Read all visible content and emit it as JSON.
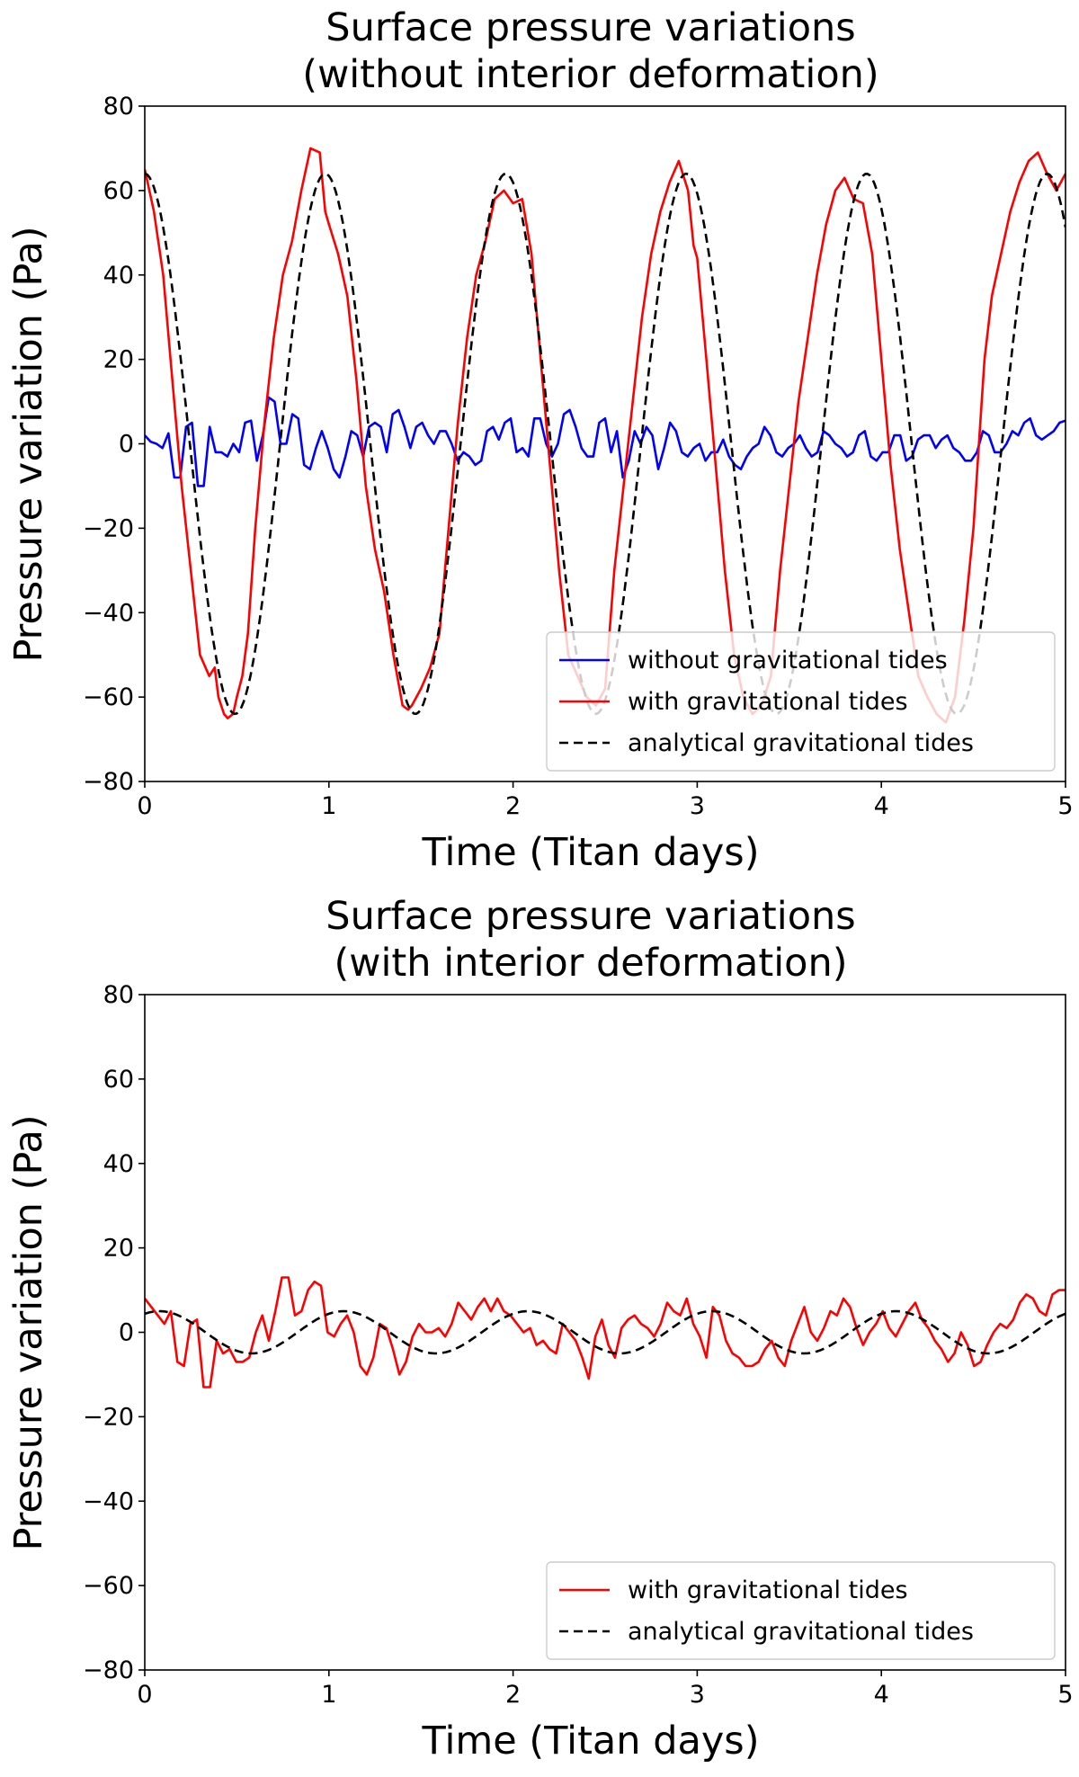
{
  "chart_data": [
    {
      "type": "line",
      "title": [
        "Surface pressure variations",
        "(without interior deformation)"
      ],
      "xlabel": "Time (Titan days)",
      "ylabel": "Pressure variation (Pa)",
      "xlim": [
        0,
        5
      ],
      "ylim": [
        -80,
        80
      ],
      "xticks": [
        0,
        1,
        2,
        3,
        4,
        5
      ],
      "xtick_labels": [
        "0",
        "1",
        "2",
        "3",
        "4",
        "5"
      ],
      "yticks": [
        -80,
        -60,
        -40,
        -20,
        0,
        20,
        40,
        60,
        80
      ],
      "ytick_labels": [
        "−80",
        "−60",
        "−40",
        "−20",
        "0",
        "20",
        "40",
        "60",
        "80"
      ],
      "grid": false,
      "legend_position": "lower-right",
      "series": [
        {
          "name": "without gravitational tides",
          "color": "#0000ff",
          "style": "solid",
          "kind": "sampled",
          "x_start": 0,
          "x_end": 5,
          "values": [
            2,
            0.5,
            0,
            -1,
            2.5,
            -8,
            -8,
            4,
            5,
            -10,
            -10,
            4,
            -2,
            -2,
            -3,
            0,
            -2,
            5,
            5.5,
            -4,
            2,
            11,
            10,
            0,
            0,
            7,
            6,
            -5,
            -6,
            -1,
            3,
            -1,
            -6,
            -8,
            -3,
            3,
            2,
            -3,
            4,
            5,
            4,
            -2,
            7,
            8,
            4,
            -1,
            4,
            5,
            2,
            0,
            3,
            3,
            0,
            -4,
            -2,
            -3,
            -5,
            -4,
            3,
            4,
            1,
            5,
            6,
            -2,
            -1,
            -3,
            6,
            6,
            0,
            -3,
            0,
            7,
            8,
            4,
            -1,
            -3,
            -3,
            5,
            6,
            -2,
            3,
            -8,
            -4,
            3,
            0,
            4,
            2,
            -6,
            -1,
            5,
            3,
            -2,
            -3,
            -1,
            0,
            -4,
            -2,
            -2,
            1,
            -3,
            -5,
            -6,
            -3,
            -1,
            0,
            4,
            2,
            -2,
            -3,
            -1,
            0,
            2,
            -1,
            -3,
            -2,
            3,
            2,
            0,
            -1,
            -3,
            -2,
            2,
            3,
            -3,
            -4,
            -2,
            -2,
            2,
            2,
            -4,
            -3,
            1,
            2,
            2,
            -1,
            1,
            2,
            -1,
            -2,
            -4,
            -4,
            -2,
            3,
            2,
            -2,
            -2,
            0,
            3,
            2,
            5,
            6,
            2,
            1,
            2,
            3,
            5,
            5.5
          ]
        },
        {
          "name": "with gravitational tides",
          "color": "#ff0000",
          "style": "solid",
          "kind": "points",
          "x": [
            0,
            0.05,
            0.1,
            0.15,
            0.2,
            0.25,
            0.3,
            0.35,
            0.38,
            0.4,
            0.43,
            0.45,
            0.48,
            0.5,
            0.53,
            0.56,
            0.6,
            0.65,
            0.7,
            0.75,
            0.8,
            0.85,
            0.9,
            0.95,
            0.98,
            1.0,
            1.05,
            1.1,
            1.15,
            1.2,
            1.25,
            1.3,
            1.35,
            1.4,
            1.43,
            1.45,
            1.5,
            1.55,
            1.6,
            1.65,
            1.7,
            1.75,
            1.8,
            1.85,
            1.9,
            1.95,
            2.0,
            2.05,
            2.1,
            2.15,
            2.2,
            2.25,
            2.3,
            2.35,
            2.4,
            2.45,
            2.5,
            2.55,
            2.6,
            2.65,
            2.7,
            2.75,
            2.8,
            2.85,
            2.9,
            2.95,
            2.98,
            3.0,
            3.05,
            3.1,
            3.15,
            3.2,
            3.25,
            3.3,
            3.35,
            3.4,
            3.45,
            3.5,
            3.55,
            3.6,
            3.65,
            3.7,
            3.75,
            3.8,
            3.85,
            3.9,
            3.95,
            4.0,
            4.05,
            4.1,
            4.15,
            4.2,
            4.25,
            4.3,
            4.35,
            4.4,
            4.45,
            4.5,
            4.53,
            4.56,
            4.6,
            4.65,
            4.7,
            4.75,
            4.8,
            4.85,
            4.9,
            4.95,
            5.0
          ],
          "y": [
            65,
            55,
            40,
            15,
            -10,
            -30,
            -50,
            -55,
            -53,
            -60,
            -64,
            -65,
            -64,
            -60,
            -55,
            -45,
            -20,
            5,
            25,
            40,
            48,
            60,
            70,
            69,
            55,
            52,
            45,
            35,
            15,
            -10,
            -25,
            -35,
            -50,
            -62,
            -63,
            -62,
            -58,
            -53,
            -45,
            -20,
            5,
            25,
            40,
            48,
            58,
            60,
            57,
            58,
            45,
            20,
            -5,
            -30,
            -50,
            -55,
            -60,
            -62,
            -58,
            -30,
            -10,
            10,
            30,
            45,
            55,
            62,
            67,
            60,
            47,
            44,
            20,
            -5,
            -30,
            -50,
            -60,
            -64,
            -62,
            -55,
            -30,
            -10,
            10,
            25,
            40,
            52,
            60,
            63,
            58,
            57,
            45,
            20,
            -5,
            -25,
            -40,
            -55,
            -60,
            -64,
            -66,
            -60,
            -42,
            -20,
            0,
            20,
            35,
            45,
            55,
            62,
            67,
            69,
            64,
            60,
            64
          ]
        },
        {
          "name": "analytical gravitational tides",
          "color": "#000000",
          "style": "dashed",
          "kind": "cosine",
          "amplitude": 64,
          "period": 0.98,
          "offset": 0
        }
      ]
    },
    {
      "type": "line",
      "title": [
        "Surface pressure variations",
        "(with interior deformation)"
      ],
      "xlabel": "Time (Titan days)",
      "ylabel": "Pressure variation (Pa)",
      "xlim": [
        0,
        5
      ],
      "ylim": [
        -80,
        80
      ],
      "xticks": [
        0,
        1,
        2,
        3,
        4,
        5
      ],
      "xtick_labels": [
        "0",
        "1",
        "2",
        "3",
        "4",
        "5"
      ],
      "yticks": [
        -80,
        -60,
        -40,
        -20,
        0,
        20,
        40,
        60,
        80
      ],
      "ytick_labels": [
        "−80",
        "−60",
        "−40",
        "−20",
        "0",
        "20",
        "40",
        "60",
        "80"
      ],
      "grid": false,
      "legend_position": "lower-right",
      "series": [
        {
          "name": "with gravitational tides",
          "color": "#ff0000",
          "style": "solid",
          "kind": "sampled",
          "x_start": 0,
          "x_end": 5,
          "values": [
            8,
            6,
            4,
            2,
            5,
            -7,
            -8,
            2,
            3,
            -13,
            -13,
            -2,
            -5,
            -4,
            -7,
            -7,
            -6,
            0,
            4,
            -2,
            5,
            13,
            13,
            4,
            5,
            10,
            12,
            11,
            0,
            -1,
            2,
            4,
            0,
            -8,
            -10,
            -6,
            2,
            1,
            -4,
            -10,
            -7,
            -1,
            2,
            0,
            0,
            1,
            -1,
            2,
            7,
            5,
            3,
            6,
            8,
            5,
            8,
            5,
            4,
            2,
            0,
            1,
            -3,
            -2,
            -4,
            -5,
            2,
            0,
            -2,
            -6,
            -11,
            -1,
            3,
            -3,
            -6,
            1,
            3,
            4,
            2,
            1,
            -1,
            2,
            7,
            5,
            4,
            8,
            2,
            -1,
            -6,
            6,
            4,
            -2,
            -5,
            -6,
            -8,
            -8,
            -7,
            -4,
            -2,
            -6,
            -8,
            -2,
            2,
            6,
            0,
            -2,
            1,
            5,
            4,
            8,
            6,
            1,
            -3,
            0,
            2,
            5,
            1,
            -1,
            2,
            5,
            7,
            3,
            1,
            -2,
            -4,
            -7,
            -5,
            0,
            -3,
            -8,
            -7,
            -3,
            0,
            2,
            1,
            3,
            7,
            9,
            8,
            5,
            4,
            9,
            10,
            10
          ]
        },
        {
          "name": "analytical gravitational tides",
          "color": "#000000",
          "style": "dashed",
          "kind": "cosine",
          "amplitude": 5,
          "period": 1.0,
          "offset": 0.08
        }
      ]
    }
  ]
}
